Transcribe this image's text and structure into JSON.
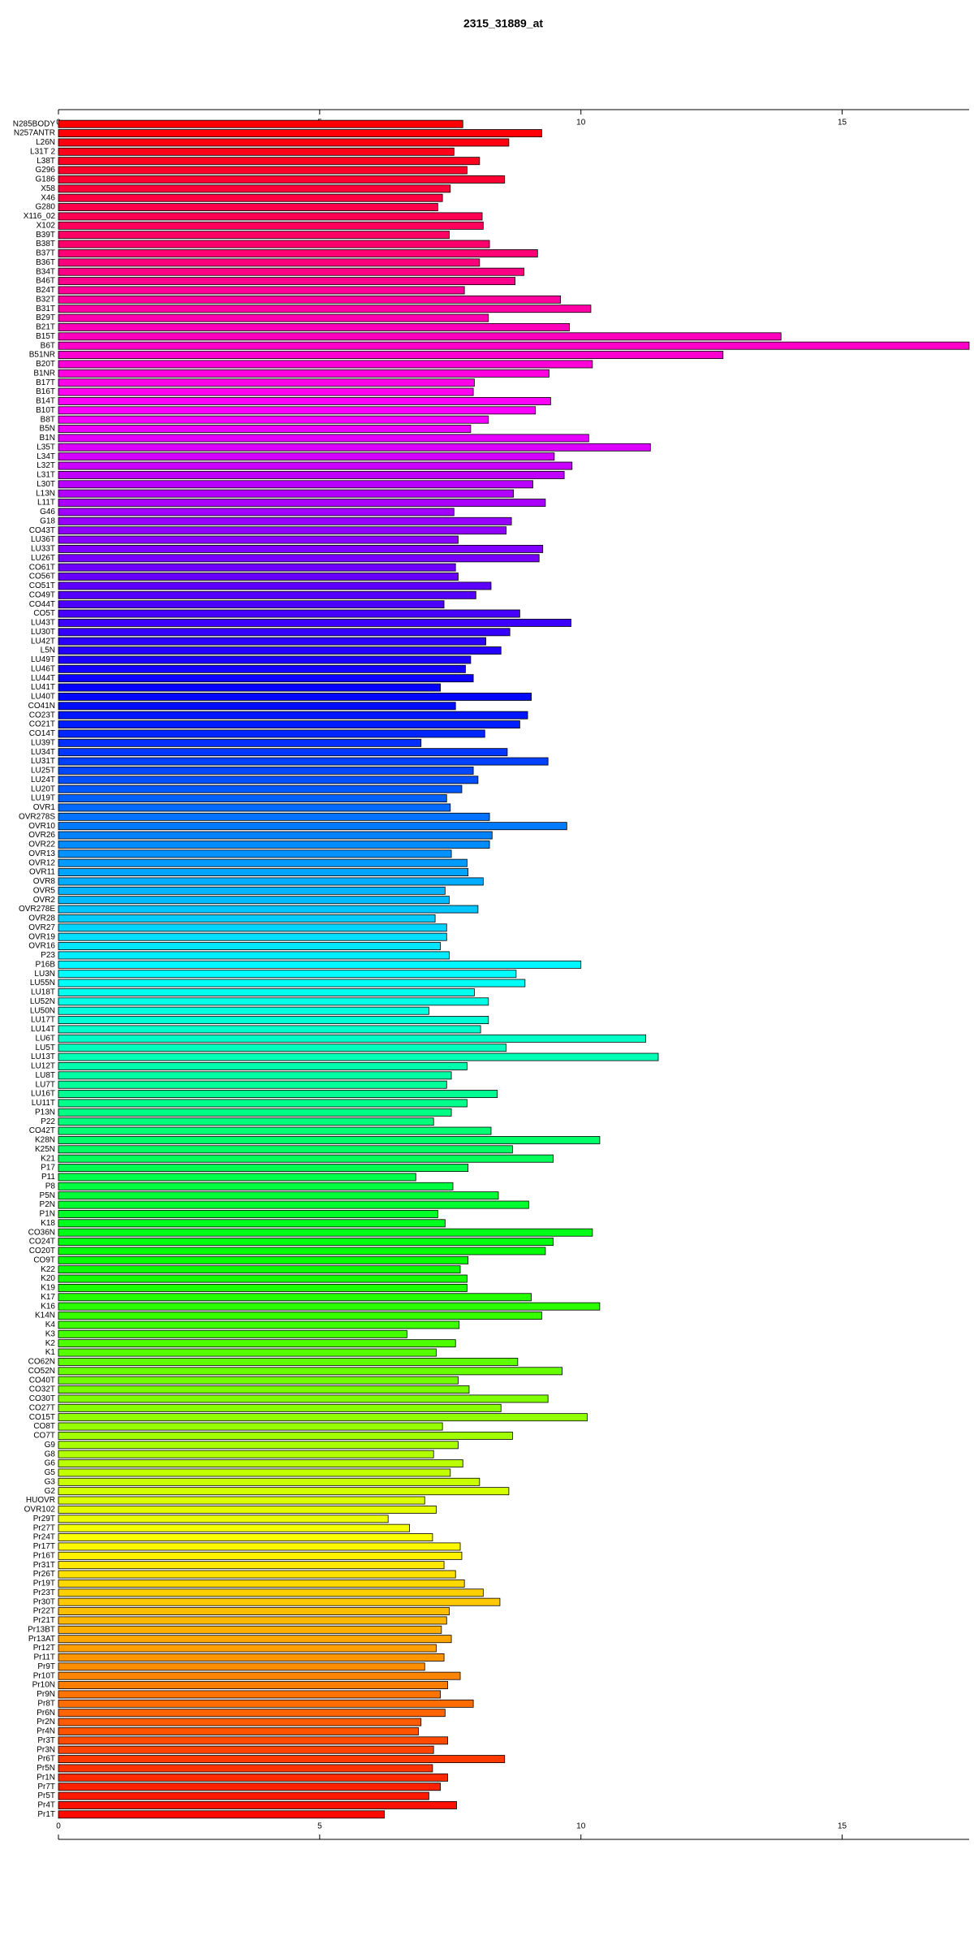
{
  "chart_data": {
    "type": "barh",
    "title": "2315_31889_at",
    "categories": [
      "N285BODY",
      "N257ANTR",
      "L26N",
      "L31T 2",
      "L38T",
      "G296",
      "G186",
      "X58",
      "X46",
      "G280",
      "X116_02",
      "X102",
      "B39T",
      "B38T",
      "B37T",
      "B36T",
      "B34T",
      "B46T",
      "B24T",
      "B32T",
      "B31T",
      "B29T",
      "B21T",
      "B15T",
      "B6T",
      "B51NR",
      "B20T",
      "B1NR",
      "B17T",
      "B16T",
      "B14T",
      "B10T",
      "B8T",
      "B5N",
      "B1N",
      "L35T",
      "L34T",
      "L32T",
      "L31T",
      "L30T",
      "L13N",
      "L11T",
      "G46",
      "G18",
      "CO43T",
      "LU36T",
      "LU33T",
      "LU26T",
      "CO61T",
      "CO56T",
      "CO51T",
      "CO49T",
      "CO44T",
      "CO5T",
      "LU43T",
      "LU30T",
      "LU42T",
      "L5N",
      "LU49T",
      "LU46T",
      "LU44T",
      "LU41T",
      "LU40T",
      "CO41N",
      "CO23T",
      "CO21T",
      "CO14T",
      "LU39T",
      "LU34T",
      "LU31T",
      "LU25T",
      "LU24T",
      "LU20T",
      "LU19T",
      "OVR1",
      "OVR278S",
      "OVR10",
      "OVR26",
      "OVR22",
      "OVR13",
      "OVR12",
      "OVR11",
      "OVR8",
      "OVR5",
      "OVR2",
      "OVR278E",
      "OVR28",
      "OVR27",
      "OVR19",
      "OVR16",
      "P23",
      "P16B",
      "LU3N",
      "LU55N",
      "LU18T",
      "LU52N",
      "LU50N",
      "LU17T",
      "LU14T",
      "LU6T",
      "LU5T",
      "LU13T",
      "LU12T",
      "LU8T",
      "LU7T",
      "LU16T",
      "LU11T",
      "P13N",
      "P22",
      "CO42T",
      "K28N",
      "K25N",
      "K21",
      "P17",
      "P11",
      "P8",
      "P5N",
      "P2N",
      "P1N",
      "K18",
      "CO36N",
      "CO24T",
      "CO20T",
      "CO9T",
      "K22",
      "K20",
      "K19",
      "K17",
      "K16",
      "K14N",
      "K4",
      "K3",
      "K2",
      "K1",
      "CO62N",
      "CO52N",
      "CO40T",
      "CO32T",
      "CO30T",
      "CO27T",
      "CO15T",
      "CO8T",
      "CO7T",
      "G9",
      "G8",
      "G6",
      "G5",
      "G3",
      "G2",
      "HUOVR",
      "OVR102",
      "Pr29T",
      "Pr27T",
      "Pr24T",
      "Pr17T",
      "Pr16T",
      "Pr31T",
      "Pr26T",
      "Pr19T",
      "Pr23T",
      "Pr30T",
      "Pr22T",
      "Pr21T",
      "Pr13BT",
      "Pr13AT",
      "Pr12T",
      "Pr11T",
      "Pr9T",
      "Pr10T",
      "Pr10N",
      "Pr9N",
      "Pr8T",
      "Pr6N",
      "Pr2N",
      "Pr4N",
      "Pr3T",
      "Pr3N",
      "Pr6T",
      "Pr5N",
      "Pr1N",
      "Pr7T",
      "Pr5T",
      "Pr4T",
      "Pr1T"
    ],
    "values": [
      7.74,
      9.25,
      8.62,
      7.57,
      8.06,
      7.82,
      8.54,
      7.5,
      7.35,
      7.26,
      8.11,
      8.13,
      7.48,
      8.25,
      9.17,
      8.06,
      8.91,
      8.74,
      7.77,
      9.61,
      10.19,
      8.23,
      9.78,
      13.83,
      17.43,
      12.72,
      10.22,
      9.39,
      7.96,
      7.94,
      9.42,
      9.13,
      8.23,
      7.89,
      10.15,
      11.33,
      9.49,
      9.83,
      9.68,
      9.08,
      8.71,
      9.32,
      7.57,
      8.67,
      8.57,
      7.65,
      9.27,
      9.2,
      7.6,
      7.65,
      8.28,
      7.99,
      7.38,
      8.83,
      9.81,
      8.64,
      8.18,
      8.47,
      7.89,
      7.79,
      7.94,
      7.31,
      9.05,
      7.6,
      8.98,
      8.83,
      8.16,
      6.94,
      8.59,
      9.37,
      7.94,
      8.03,
      7.72,
      7.43,
      7.5,
      8.25,
      9.73,
      8.3,
      8.25,
      7.52,
      7.82,
      7.84,
      8.13,
      7.4,
      7.48,
      8.03,
      7.21,
      7.43,
      7.43,
      7.31,
      7.48,
      10.0,
      8.76,
      8.93,
      7.96,
      8.23,
      7.09,
      8.23,
      8.08,
      11.24,
      8.57,
      11.48,
      7.82,
      7.52,
      7.43,
      8.4,
      7.82,
      7.52,
      7.18,
      8.28,
      10.36,
      8.69,
      9.47,
      7.84,
      6.84,
      7.55,
      8.42,
      9.0,
      7.26,
      7.4,
      10.22,
      9.47,
      9.32,
      7.84,
      7.69,
      7.82,
      7.82,
      9.05,
      10.36,
      9.25,
      7.67,
      6.67,
      7.6,
      7.23,
      8.79,
      9.64,
      7.65,
      7.86,
      9.37,
      8.47,
      10.12,
      7.35,
      8.69,
      7.65,
      7.18,
      7.74,
      7.5,
      8.06,
      8.62,
      7.01,
      7.23,
      6.31,
      6.72,
      7.16,
      7.69,
      7.72,
      7.38,
      7.6,
      7.77,
      8.13,
      8.45,
      7.48,
      7.43,
      7.33,
      7.52,
      7.23,
      7.38,
      7.01,
      7.69,
      7.45,
      7.31,
      7.94,
      7.4,
      6.94,
      6.89,
      7.45,
      7.18,
      8.54,
      7.16,
      7.45,
      7.31,
      7.09,
      7.62,
      6.24
    ],
    "colors": [
      "#ff0000",
      "#ff00ff",
      "#0000ff",
      "#00ffff",
      "#00ff00",
      "#ffff00",
      "#ff0000"
    ],
    "xlim": [
      0,
      17.43
    ],
    "xticks": [
      0,
      5,
      10,
      15
    ]
  }
}
